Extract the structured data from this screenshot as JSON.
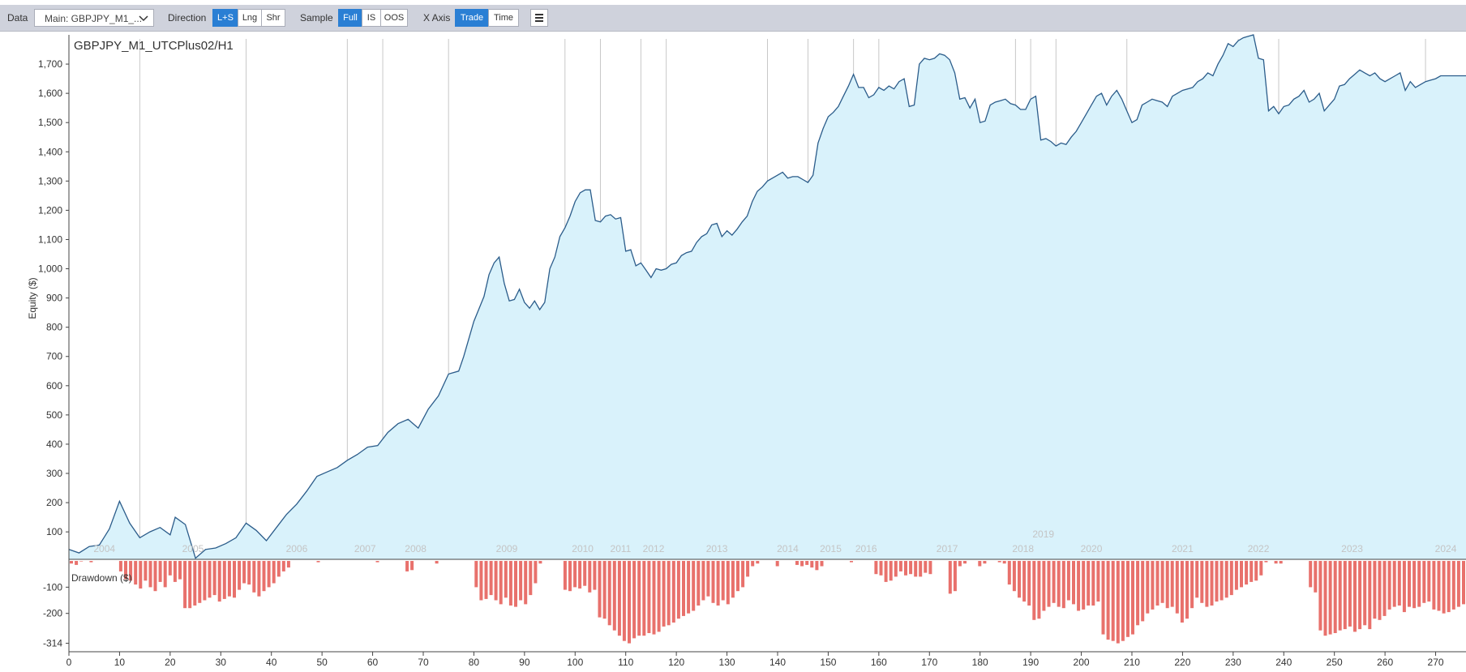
{
  "toolbar": {
    "data_label": "Data",
    "data_select": "Main: GBPJPY_M1_...",
    "direction_label": "Direction",
    "direction_options": [
      "L+S",
      "Lng",
      "Shr"
    ],
    "direction_selected": "L+S",
    "sample_label": "Sample",
    "sample_options": [
      "Full",
      "IS",
      "OOS"
    ],
    "sample_selected": "Full",
    "xaxis_label": "X Axis",
    "xaxis_options": [
      "Trade",
      "Time"
    ],
    "xaxis_selected": "Trade"
  },
  "chart_data": {
    "type": "area",
    "title": "GBPJPY_M1_UTCPlus02/H1",
    "xlabel": "",
    "ylabel": "Equity ($)",
    "xlim": [
      0,
      276
    ],
    "ylim": [
      20,
      1800
    ],
    "x_ticks": [
      0,
      10,
      20,
      30,
      40,
      50,
      60,
      70,
      80,
      90,
      100,
      110,
      120,
      130,
      140,
      150,
      160,
      170,
      180,
      190,
      200,
      210,
      220,
      230,
      240,
      250,
      260,
      270
    ],
    "y_ticks": [
      100,
      200,
      300,
      400,
      500,
      600,
      700,
      800,
      900,
      1000,
      1100,
      1200,
      1300,
      1400,
      1500,
      1600,
      1700
    ],
    "y_tick_labels": [
      "100",
      "200",
      "300",
      "400",
      "500",
      "600",
      "700",
      "800",
      "900",
      "1,000",
      "1,100",
      "1,200",
      "1,300",
      "1,400",
      "1,500",
      "1,600",
      "1,700"
    ],
    "colors": {
      "line": "#2b5c8a",
      "fill": "#d9f2fb",
      "drawdown": "#e8716c",
      "year_line": "#c8c8c8",
      "year_text": "#c4c4c4"
    },
    "year_boundaries": [
      14,
      35,
      55,
      62,
      75,
      98,
      105,
      113,
      118,
      138,
      146,
      155,
      160,
      187,
      190,
      195,
      209,
      231,
      239,
      268
    ],
    "year_labels": [
      {
        "label": "2004",
        "x": 7
      },
      {
        "label": "2005",
        "x": 24.5
      },
      {
        "label": "2006",
        "x": 45
      },
      {
        "label": "2007",
        "x": 58.5
      },
      {
        "label": "2008",
        "x": 68.5
      },
      {
        "label": "2009",
        "x": 86.5
      },
      {
        "label": "2010",
        "x": 101.5
      },
      {
        "label": "2011",
        "x": 109
      },
      {
        "label": "2012",
        "x": 115.5
      },
      {
        "label": "2013",
        "x": 128
      },
      {
        "label": "2014",
        "x": 142
      },
      {
        "label": "2015",
        "x": 150.5
      },
      {
        "label": "2016",
        "x": 157.5
      },
      {
        "label": "2017",
        "x": 173.5
      },
      {
        "label": "2018",
        "x": 188.5
      },
      {
        "label": "2019",
        "x": 192.5,
        "high": true
      },
      {
        "label": "2020",
        "x": 202
      },
      {
        "label": "2021",
        "x": 220
      },
      {
        "label": "2022",
        "x": 235
      },
      {
        "label": "2023",
        "x": 253.5
      },
      {
        "label": "2024",
        "x": 272
      }
    ],
    "equity_points": [
      [
        0,
        40
      ],
      [
        2,
        28
      ],
      [
        4,
        50
      ],
      [
        6,
        55
      ],
      [
        8,
        110
      ],
      [
        10,
        205
      ],
      [
        12,
        130
      ],
      [
        14,
        80
      ],
      [
        16,
        100
      ],
      [
        18,
        115
      ],
      [
        20,
        90
      ],
      [
        21,
        150
      ],
      [
        23,
        125
      ],
      [
        25,
        10
      ],
      [
        27,
        40
      ],
      [
        29,
        45
      ],
      [
        31,
        60
      ],
      [
        33,
        80
      ],
      [
        35,
        130
      ],
      [
        37,
        105
      ],
      [
        39,
        70
      ],
      [
        41,
        115
      ],
      [
        43,
        160
      ],
      [
        45,
        195
      ],
      [
        47,
        240
      ],
      [
        49,
        290
      ],
      [
        51,
        305
      ],
      [
        53,
        320
      ],
      [
        55,
        345
      ],
      [
        57,
        365
      ],
      [
        59,
        390
      ],
      [
        61,
        395
      ],
      [
        63,
        440
      ],
      [
        65,
        470
      ],
      [
        67,
        485
      ],
      [
        69,
        455
      ],
      [
        71,
        520
      ],
      [
        73,
        565
      ],
      [
        75,
        640
      ],
      [
        77,
        650
      ],
      [
        78,
        700
      ],
      [
        80,
        820
      ],
      [
        82,
        905
      ],
      [
        83,
        980
      ],
      [
        84,
        1020
      ],
      [
        85,
        1040
      ],
      [
        86,
        950
      ],
      [
        87,
        890
      ],
      [
        88,
        895
      ],
      [
        89,
        930
      ],
      [
        90,
        885
      ],
      [
        91,
        865
      ],
      [
        92,
        890
      ],
      [
        93,
        860
      ],
      [
        94,
        885
      ],
      [
        95,
        1000
      ],
      [
        96,
        1040
      ],
      [
        97,
        1110
      ],
      [
        98,
        1140
      ],
      [
        99,
        1180
      ],
      [
        100,
        1230
      ],
      [
        101,
        1260
      ],
      [
        102,
        1270
      ],
      [
        103,
        1270
      ],
      [
        104,
        1165
      ],
      [
        105,
        1160
      ],
      [
        106,
        1180
      ],
      [
        107,
        1185
      ],
      [
        108,
        1170
      ],
      [
        109,
        1175
      ],
      [
        110,
        1060
      ],
      [
        111,
        1065
      ],
      [
        112,
        1010
      ],
      [
        113,
        1020
      ],
      [
        114,
        995
      ],
      [
        115,
        970
      ],
      [
        116,
        1000
      ],
      [
        117,
        995
      ],
      [
        118,
        1000
      ],
      [
        119,
        1015
      ],
      [
        120,
        1020
      ],
      [
        121,
        1045
      ],
      [
        122,
        1055
      ],
      [
        123,
        1060
      ],
      [
        124,
        1090
      ],
      [
        125,
        1110
      ],
      [
        126,
        1120
      ],
      [
        127,
        1150
      ],
      [
        128,
        1155
      ],
      [
        129,
        1110
      ],
      [
        130,
        1130
      ],
      [
        131,
        1115
      ],
      [
        132,
        1135
      ],
      [
        133,
        1160
      ],
      [
        134,
        1180
      ],
      [
        135,
        1230
      ],
      [
        136,
        1265
      ],
      [
        137,
        1280
      ],
      [
        138,
        1300
      ],
      [
        139,
        1310
      ],
      [
        140,
        1320
      ],
      [
        141,
        1330
      ],
      [
        142,
        1310
      ],
      [
        143,
        1315
      ],
      [
        144,
        1315
      ],
      [
        145,
        1305
      ],
      [
        146,
        1295
      ],
      [
        147,
        1320
      ],
      [
        148,
        1430
      ],
      [
        149,
        1480
      ],
      [
        150,
        1520
      ],
      [
        151,
        1535
      ],
      [
        152,
        1555
      ],
      [
        153,
        1590
      ],
      [
        154,
        1625
      ],
      [
        155,
        1665
      ],
      [
        156,
        1620
      ],
      [
        157,
        1620
      ],
      [
        158,
        1585
      ],
      [
        159,
        1595
      ],
      [
        160,
        1620
      ],
      [
        161,
        1610
      ],
      [
        162,
        1625
      ],
      [
        163,
        1615
      ],
      [
        164,
        1640
      ],
      [
        165,
        1650
      ],
      [
        166,
        1555
      ],
      [
        167,
        1560
      ],
      [
        168,
        1700
      ],
      [
        169,
        1720
      ],
      [
        170,
        1715
      ],
      [
        171,
        1720
      ],
      [
        172,
        1735
      ],
      [
        173,
        1730
      ],
      [
        174,
        1715
      ],
      [
        175,
        1670
      ],
      [
        176,
        1580
      ],
      [
        177,
        1585
      ],
      [
        178,
        1550
      ],
      [
        179,
        1580
      ],
      [
        180,
        1500
      ],
      [
        181,
        1505
      ],
      [
        182,
        1560
      ],
      [
        183,
        1570
      ],
      [
        184,
        1575
      ],
      [
        185,
        1580
      ],
      [
        186,
        1565
      ],
      [
        187,
        1560
      ],
      [
        188,
        1545
      ],
      [
        189,
        1545
      ],
      [
        190,
        1580
      ],
      [
        191,
        1590
      ],
      [
        192,
        1440
      ],
      [
        193,
        1445
      ],
      [
        194,
        1435
      ],
      [
        195,
        1420
      ],
      [
        196,
        1430
      ],
      [
        197,
        1425
      ],
      [
        198,
        1450
      ],
      [
        199,
        1470
      ],
      [
        200,
        1500
      ],
      [
        201,
        1530
      ],
      [
        202,
        1560
      ],
      [
        203,
        1590
      ],
      [
        204,
        1600
      ],
      [
        205,
        1560
      ],
      [
        206,
        1590
      ],
      [
        207,
        1610
      ],
      [
        208,
        1580
      ],
      [
        209,
        1540
      ],
      [
        210,
        1500
      ],
      [
        211,
        1510
      ],
      [
        212,
        1560
      ],
      [
        213,
        1570
      ],
      [
        214,
        1580
      ],
      [
        215,
        1575
      ],
      [
        216,
        1570
      ],
      [
        217,
        1555
      ],
      [
        218,
        1590
      ],
      [
        219,
        1600
      ],
      [
        220,
        1610
      ],
      [
        221,
        1615
      ],
      [
        222,
        1620
      ],
      [
        223,
        1640
      ],
      [
        224,
        1650
      ],
      [
        225,
        1670
      ],
      [
        226,
        1660
      ],
      [
        227,
        1700
      ],
      [
        228,
        1730
      ],
      [
        229,
        1770
      ],
      [
        230,
        1760
      ],
      [
        231,
        1780
      ],
      [
        232,
        1790
      ],
      [
        233,
        1795
      ],
      [
        234,
        1800
      ],
      [
        235,
        1720
      ],
      [
        236,
        1715
      ],
      [
        237,
        1540
      ],
      [
        238,
        1555
      ],
      [
        239,
        1530
      ],
      [
        240,
        1555
      ],
      [
        241,
        1560
      ],
      [
        242,
        1580
      ],
      [
        243,
        1590
      ],
      [
        244,
        1610
      ],
      [
        245,
        1570
      ],
      [
        246,
        1580
      ],
      [
        247,
        1600
      ],
      [
        248,
        1540
      ],
      [
        249,
        1560
      ],
      [
        250,
        1580
      ],
      [
        251,
        1625
      ],
      [
        252,
        1630
      ],
      [
        253,
        1650
      ],
      [
        254,
        1665
      ],
      [
        255,
        1680
      ],
      [
        256,
        1670
      ],
      [
        257,
        1660
      ],
      [
        258,
        1670
      ],
      [
        259,
        1650
      ],
      [
        260,
        1640
      ],
      [
        261,
        1650
      ],
      [
        262,
        1660
      ],
      [
        263,
        1670
      ],
      [
        264,
        1610
      ],
      [
        265,
        1640
      ],
      [
        266,
        1620
      ],
      [
        267,
        1630
      ],
      [
        268,
        1640
      ],
      [
        269,
        1645
      ],
      [
        270,
        1650
      ],
      [
        271,
        1660
      ],
      [
        276,
        1660
      ]
    ],
    "drawdown": {
      "label": "Drawdown ($)",
      "ylim": [
        -340,
        0
      ],
      "y_ticks": [
        -100,
        -200,
        -314
      ],
      "y_tick_labels": [
        "-100",
        "-200",
        "-314"
      ],
      "x_range": [
        0,
        276
      ],
      "values": [
        -10,
        -15,
        -2,
        0,
        -5,
        0,
        0,
        0,
        0,
        0,
        -40,
        -70,
        -75,
        -90,
        -105,
        -75,
        -100,
        -115,
        -80,
        -100,
        -55,
        -80,
        -70,
        -180,
        -180,
        -170,
        -160,
        -150,
        -140,
        -130,
        -155,
        -145,
        -135,
        -140,
        -110,
        -85,
        -90,
        -120,
        -135,
        -115,
        -100,
        -85,
        -60,
        -40,
        -25,
        0,
        0,
        0,
        0,
        0,
        -5,
        0,
        0,
        0,
        0,
        0,
        0,
        0,
        0,
        0,
        0,
        0,
        -5,
        0,
        0,
        0,
        0,
        0,
        -40,
        -35,
        0,
        0,
        0,
        0,
        -10,
        0,
        0,
        0,
        0,
        0,
        0,
        0,
        -100,
        -150,
        -145,
        -130,
        -150,
        -165,
        -140,
        -170,
        -175,
        -150,
        -165,
        -130,
        -85,
        -10,
        0,
        0,
        0,
        0,
        -110,
        -115,
        -100,
        -105,
        -95,
        -120,
        -110,
        -215,
        -220,
        -245,
        -265,
        -285,
        -305,
        -314,
        -295,
        -285,
        -285,
        -275,
        -280,
        -270,
        -250,
        -245,
        -235,
        -220,
        -210,
        -200,
        -190,
        -170,
        -150,
        -135,
        -160,
        -170,
        -150,
        -165,
        -140,
        -115,
        -100,
        -60,
        -20,
        -10,
        0,
        0,
        0,
        -20,
        0,
        0,
        0,
        -15,
        -20,
        -15,
        -25,
        -35,
        -20,
        0,
        0,
        0,
        0,
        0,
        -5,
        0,
        0,
        0,
        0,
        -50,
        -55,
        -80,
        -75,
        -60,
        -40,
        -55,
        -50,
        -60,
        -60,
        -45,
        -50,
        0,
        0,
        0,
        -125,
        -115,
        -20,
        -10,
        0,
        0,
        -20,
        -10,
        0,
        0,
        -5,
        -10,
        -90,
        -115,
        -140,
        -155,
        -170,
        -225,
        -220,
        -190,
        -175,
        -160,
        -175,
        -180,
        -150,
        -165,
        -190,
        -185,
        -170,
        -170,
        -155,
        -280,
        -300,
        -305,
        -314,
        -305,
        -290,
        -280,
        -245,
        -230,
        -200,
        -185,
        -170,
        -160,
        -180,
        -175,
        -200,
        -235,
        -220,
        -180,
        -140,
        -160,
        -175,
        -170,
        -155,
        -150,
        -140,
        -130,
        -110,
        -100,
        -90,
        -80,
        -75,
        -55,
        -5,
        0,
        -10,
        -10,
        0,
        0,
        0,
        0,
        0,
        -100,
        -120,
        -265,
        -285,
        -280,
        -275,
        -265,
        -260,
        -250,
        -270,
        -260,
        -245,
        -260,
        -220,
        -225,
        -210,
        -185,
        -175,
        -170,
        -195,
        -175,
        -180,
        -175,
        -160,
        -155,
        -185,
        -190,
        -200,
        -195,
        -185,
        -175,
        -165
      ]
    }
  }
}
